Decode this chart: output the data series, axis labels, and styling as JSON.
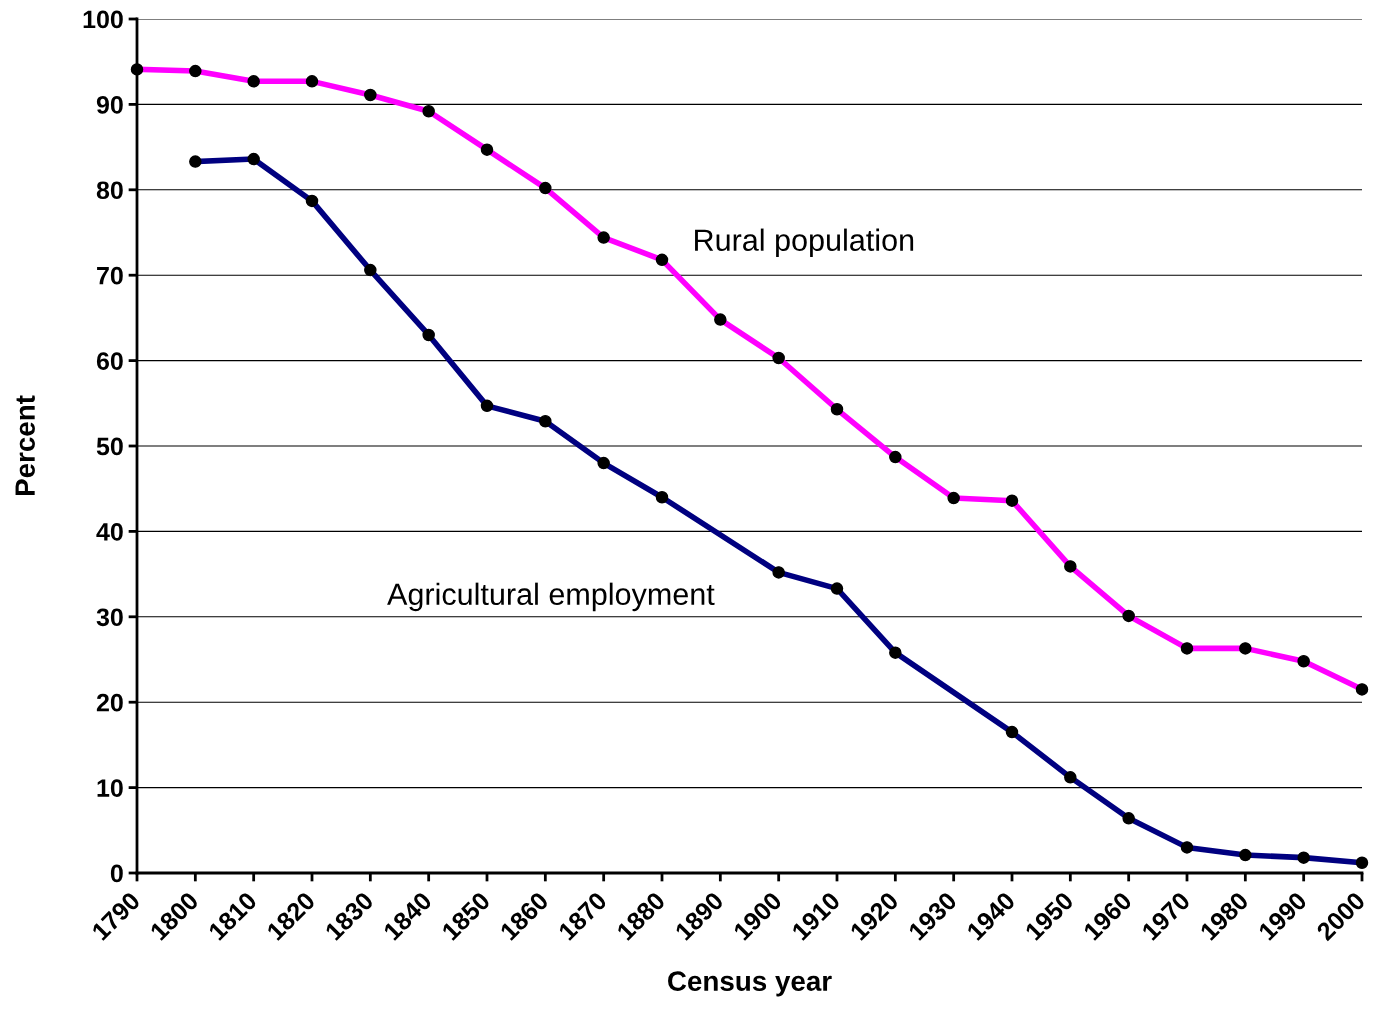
{
  "chart_data": {
    "type": "line",
    "xlabel": "Census year",
    "ylabel": "Percent",
    "xlim": [
      1790,
      2000
    ],
    "xticks": [
      1790,
      1800,
      1810,
      1820,
      1830,
      1840,
      1850,
      1860,
      1870,
      1880,
      1890,
      1900,
      1910,
      1920,
      1930,
      1940,
      1950,
      1960,
      1970,
      1980,
      1990,
      2000
    ],
    "ylim": [
      0,
      100
    ],
    "yticks": [
      0,
      10,
      20,
      30,
      40,
      50,
      60,
      70,
      80,
      90,
      100
    ],
    "grid": "y",
    "marker": "circle",
    "line_style": "solid",
    "legend": false,
    "series": [
      {
        "name": "Rural population",
        "color": "#ff00ff",
        "x": [
          1790,
          1800,
          1810,
          1820,
          1830,
          1840,
          1850,
          1860,
          1870,
          1880,
          1890,
          1900,
          1910,
          1920,
          1930,
          1940,
          1950,
          1960,
          1970,
          1980,
          1990,
          2000
        ],
        "values": [
          94.1,
          93.9,
          92.7,
          92.7,
          91.1,
          89.2,
          84.7,
          80.2,
          74.4,
          71.8,
          64.8,
          60.3,
          54.3,
          48.7,
          43.9,
          43.6,
          35.9,
          30.1,
          26.3,
          26.3,
          24.8,
          21.5
        ]
      },
      {
        "name": "Agricultural employment",
        "color": "#000080",
        "x": [
          1800,
          1810,
          1820,
          1830,
          1840,
          1850,
          1860,
          1870,
          1880,
          1900,
          1910,
          1920,
          1940,
          1950,
          1960,
          1970,
          1980,
          1990,
          2000
        ],
        "values": [
          83.3,
          83.6,
          78.7,
          70.6,
          63.0,
          54.7,
          52.9,
          48.0,
          44.0,
          35.2,
          33.3,
          25.8,
          16.5,
          11.2,
          6.4,
          3.0,
          2.1,
          1.8,
          1.2
        ]
      }
    ]
  }
}
